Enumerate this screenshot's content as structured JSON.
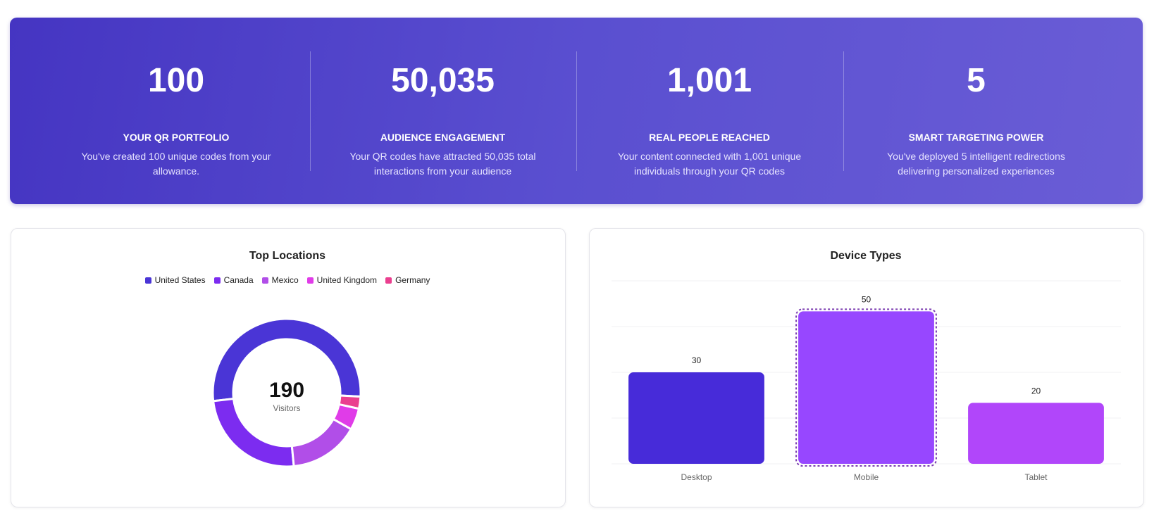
{
  "stats": [
    {
      "value": "100",
      "label": "YOUR QR PORTFOLIO",
      "description": "You've created 100 unique codes from your allowance."
    },
    {
      "value": "50,035",
      "label": "AUDIENCE ENGAGEMENT",
      "description": "Your QR codes have attracted 50,035 total interactions from your audience"
    },
    {
      "value": "1,001",
      "label": "REAL PEOPLE REACHED",
      "description": "Your content connected with 1,001 unique individuals through your QR codes"
    },
    {
      "value": "5",
      "label": "SMART TARGETING POWER",
      "description": "You've deployed 5 intelligent redirections delivering personalized experiences"
    }
  ],
  "chart_data": [
    {
      "type": "doughnut",
      "title": "Top Locations",
      "categories": [
        "United States",
        "Canada",
        "Mexico",
        "United Kingdom",
        "Germany"
      ],
      "values": [
        100,
        47,
        29,
        9,
        5
      ],
      "colors": [
        "#4a35d6",
        "#7c2cf0",
        "#b14ee8",
        "#e03ce8",
        "#ea3f8f"
      ],
      "total": 190,
      "center_label": "Visitors"
    },
    {
      "type": "bar",
      "title": "Device Types",
      "categories": [
        "Desktop",
        "Mobile",
        "Tablet"
      ],
      "values": [
        30,
        50,
        20
      ],
      "colors": [
        "#472bd9",
        "#9747ff",
        "#b146fa"
      ],
      "ylim": [
        0,
        60
      ],
      "yticks": [
        0,
        15,
        30,
        45,
        60
      ],
      "grid": true
    }
  ]
}
